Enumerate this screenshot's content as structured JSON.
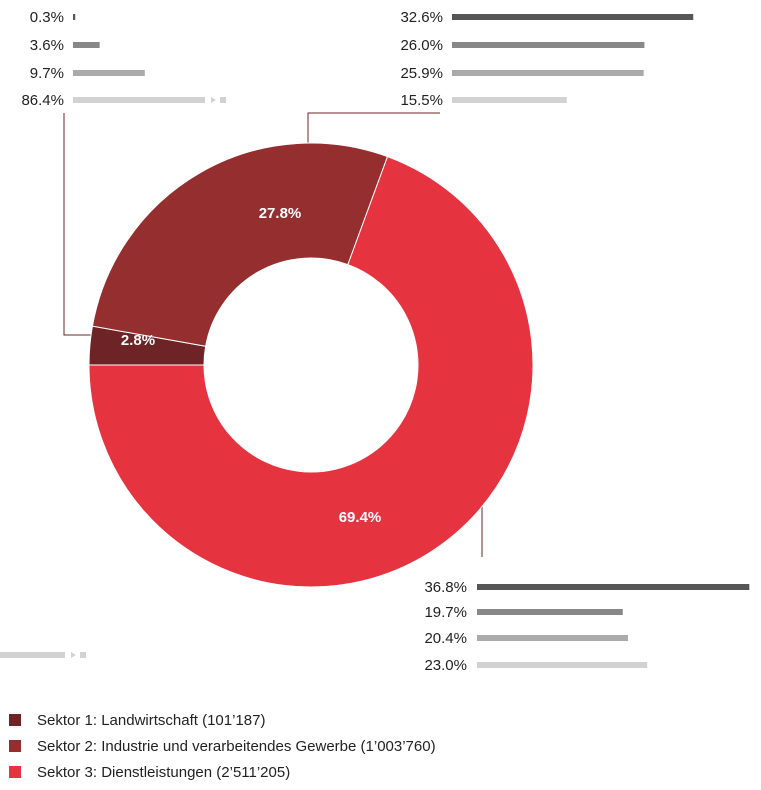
{
  "chart_data": {
    "type": "pie",
    "donut": true,
    "values": [
      2.8,
      27.8,
      69.4
    ],
    "value_labels": [
      "2.8%",
      "27.8%",
      "69.4%"
    ],
    "series": [
      {
        "name": "Sektor 1: Landwirtschaft (101’187)",
        "color": "#6e2427"
      },
      {
        "name": "Sektor 2: Industrie und verarbeitendes Gewerbe (1’003’760)",
        "color": "#952f2f"
      },
      {
        "name": "Sektor 3: Dienstleistungen (2’511’205)",
        "color": "#e5333f"
      }
    ],
    "breakdown_colors": [
      "#565656",
      "#888888",
      "#aaaaaa",
      "#d2d2d2"
    ],
    "breakdowns": [
      {
        "values": [
          0.3,
          3.6,
          9.7,
          86.4
        ],
        "value_labels": [
          "0.3%",
          "3.6%",
          "9.7%",
          "86.4%"
        ]
      },
      {
        "values": [
          32.6,
          26.0,
          25.9,
          15.5
        ],
        "value_labels": [
          "32.6%",
          "26.0%",
          "25.9%",
          "15.5%"
        ]
      },
      {
        "values": [
          36.8,
          19.7,
          20.4,
          23.0
        ],
        "value_labels": [
          "36.8%",
          "19.7%",
          "20.4%",
          "23.0%"
        ]
      }
    ]
  }
}
